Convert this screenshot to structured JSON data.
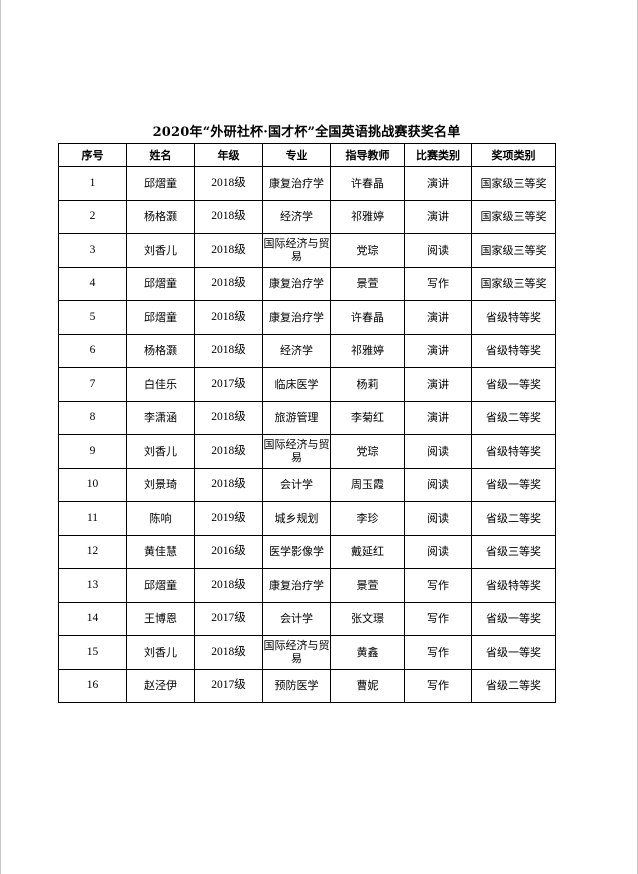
{
  "title": "2020年“外研社杯·国才杯”全国英语挑战赛获奖名单",
  "columns": [
    "序号",
    "姓名",
    "年级",
    "专业",
    "指导教师",
    "比赛类别",
    "奖项类别"
  ],
  "rows": [
    [
      "1",
      "邱熠童",
      "2018级",
      "康复治疗学",
      "许春晶",
      "演讲",
      "国家级三等奖"
    ],
    [
      "2",
      "杨格灏",
      "2018级",
      "经济学",
      "祁雅婷",
      "演讲",
      "国家级三等奖"
    ],
    [
      "3",
      "刘香儿",
      "2018级",
      "国际经济与贸易",
      "党琮",
      "阅读",
      "国家级三等奖"
    ],
    [
      "4",
      "邱熠童",
      "2018级",
      "康复治疗学",
      "景萱",
      "写作",
      "国家级三等奖"
    ],
    [
      "5",
      "邱熠童",
      "2018级",
      "康复治疗学",
      "许春晶",
      "演讲",
      "省级特等奖"
    ],
    [
      "6",
      "杨格灏",
      "2018级",
      "经济学",
      "祁雅婷",
      "演讲",
      "省级特等奖"
    ],
    [
      "7",
      "白佳乐",
      "2017级",
      "临床医学",
      "杨莉",
      "演讲",
      "省级一等奖"
    ],
    [
      "8",
      "李潇涵",
      "2018级",
      "旅游管理",
      "李菊红",
      "演讲",
      "省级二等奖"
    ],
    [
      "9",
      "刘香儿",
      "2018级",
      "国际经济与贸易",
      "党琮",
      "阅读",
      "省级特等奖"
    ],
    [
      "10",
      "刘景琦",
      "2018级",
      "会计学",
      "周玉霞",
      "阅读",
      "省级一等奖"
    ],
    [
      "11",
      "陈响",
      "2019级",
      "城乡规划",
      "李珍",
      "阅读",
      "省级二等奖"
    ],
    [
      "12",
      "黄佳慧",
      "2016级",
      "医学影像学",
      "戴延红",
      "阅读",
      "省级三等奖"
    ],
    [
      "13",
      "邱熠童",
      "2018级",
      "康复治疗学",
      "景萱",
      "写作",
      "省级特等奖"
    ],
    [
      "14",
      "王博恩",
      "2017级",
      "会计学",
      "张文璟",
      "写作",
      "省级一等奖"
    ],
    [
      "15",
      "刘香儿",
      "2018级",
      "国际经济与贸易",
      "黄鑫",
      "写作",
      "省级一等奖"
    ],
    [
      "16",
      "赵泾伊",
      "2017级",
      "预防医学",
      "曹妮",
      "写作",
      "省级二等奖"
    ]
  ]
}
